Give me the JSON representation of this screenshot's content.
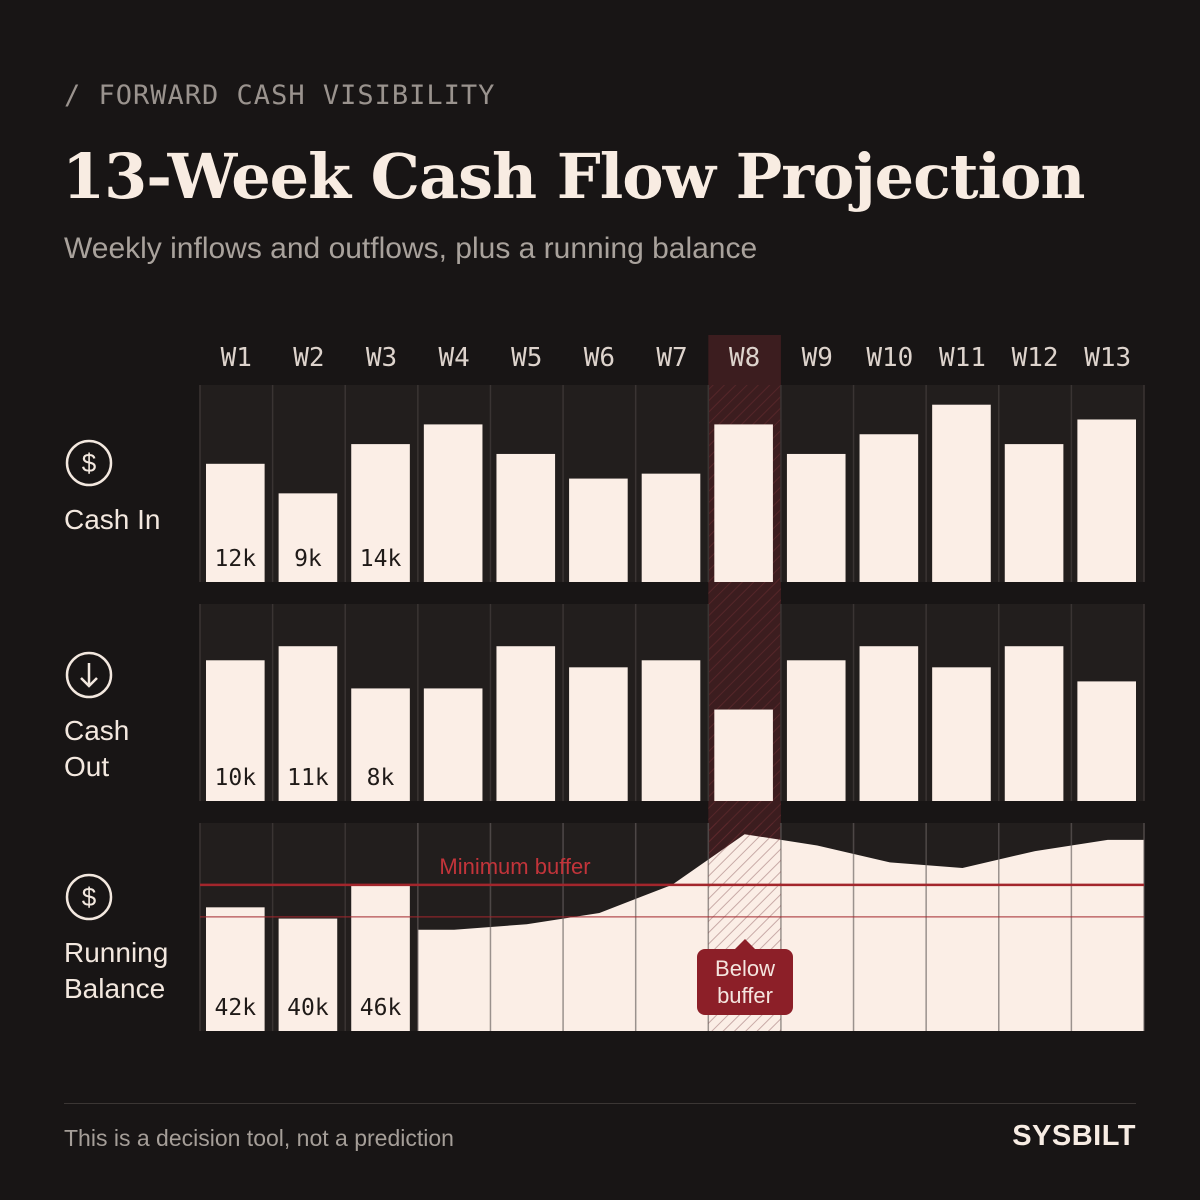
{
  "header": {
    "eyebrow": "/ FORWARD CASH VISIBILITY",
    "title": "13-Week Cash Flow Projection",
    "subtitle": "Weekly inflows and outflows, plus a running balance"
  },
  "rows": {
    "cash_in": {
      "label": "Cash In",
      "icon": "dollar-circle-icon"
    },
    "cash_out": {
      "label_line1": "Cash",
      "label_line2": "Out",
      "icon": "arrow-down-circle-icon"
    },
    "balance": {
      "label_line1": "Running",
      "label_line2": "Balance",
      "icon": "dollar-circle-icon"
    }
  },
  "annotations": {
    "buffer_label": "Minimum buffer",
    "callout_line1": "Below",
    "callout_line2": "buffer"
  },
  "footer": {
    "note": "This is a decision tool, not a prediction",
    "brand": "SYSBILT"
  },
  "colors": {
    "background": "#181515",
    "bar": "#fbeee6",
    "highlight": "#3c1d1f",
    "buffer_line": "#a3262c",
    "callout": "#8c1f28"
  },
  "chart_data": {
    "type": "bar",
    "title": "13-Week Cash Flow Projection",
    "categories": [
      "W1",
      "W2",
      "W3",
      "W4",
      "W5",
      "W6",
      "W7",
      "W8",
      "W9",
      "W10",
      "W11",
      "W12",
      "W13"
    ],
    "highlight_week": "W8",
    "series": [
      {
        "name": "Cash In",
        "values": [
          12,
          9,
          14,
          16,
          13,
          10.5,
          11,
          16,
          13,
          15,
          18,
          14,
          16.5
        ],
        "labels": [
          "12k",
          "9k",
          "14k",
          "",
          "",
          "",
          "",
          "",
          "",
          "",
          "",
          "",
          ""
        ]
      },
      {
        "name": "Cash Out",
        "values": [
          10,
          11,
          8,
          8,
          11,
          9.5,
          10,
          6.5,
          10,
          11,
          9.5,
          11,
          8.5
        ],
        "labels": [
          "10k",
          "11k",
          "8k",
          "",
          "",
          "",
          "",
          "",
          "",
          "",
          "",
          "",
          ""
        ]
      },
      {
        "name": "Running Balance",
        "values": [
          42,
          40,
          46,
          38,
          39,
          41,
          46,
          55,
          53,
          50,
          49,
          52,
          54
        ],
        "labels": [
          "42k",
          "40k",
          "46k",
          "",
          "",
          "",
          "",
          "",
          "",
          "",
          "",
          "",
          ""
        ]
      }
    ],
    "minimum_buffer": 46,
    "balance_range": [
      20,
      57
    ],
    "y_units": "k"
  }
}
